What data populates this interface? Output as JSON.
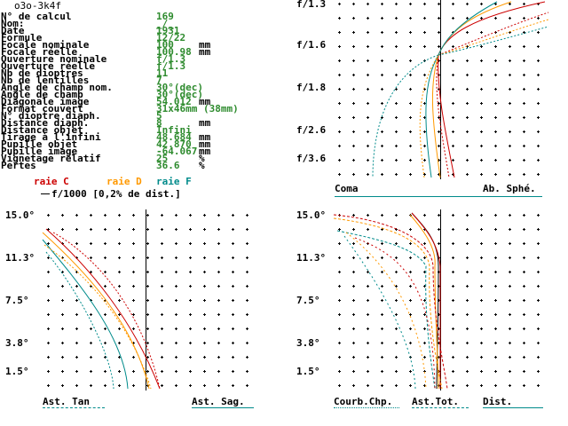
{
  "title": "o3o-3k4f",
  "params": [
    {
      "label": "N° de calcul",
      "value": "169",
      "unit": ""
    },
    {
      "label": "Nom:",
      "value": "_/_",
      "unit": ""
    },
    {
      "label": "Date",
      "value": "1931",
      "unit": ""
    },
    {
      "label": "Formule",
      "value": "12/22",
      "unit": ""
    },
    {
      "label": "Focale nominale",
      "value": "100",
      "unit": "mm"
    },
    {
      "label": "Focale réelle",
      "value": "100.98",
      "unit": "mm"
    },
    {
      "label": "Ouverture nominale",
      "value": "f/1.3",
      "unit": ""
    },
    {
      "label": "Ouverture réelle",
      "value": "f/1.3",
      "unit": ""
    },
    {
      "label": "Nb de dioptres",
      "value": "11",
      "unit": ""
    },
    {
      "label": "Nb de lentilles",
      "value": "7",
      "unit": ""
    },
    {
      "label": "Angle de champ nom.",
      "value": "30°(dec)",
      "unit": ""
    },
    {
      "label": "Angle de champ",
      "value": "30°(dec)",
      "unit": ""
    },
    {
      "label": "Diagonale image",
      "value": "54.012",
      "unit": "mm"
    },
    {
      "label": "Format couvert",
      "value": "31x46mm (38mm)",
      "unit": ""
    },
    {
      "label": "N° dioptre diaph.",
      "value": "5",
      "unit": ""
    },
    {
      "label": "Distance diaph.",
      "value": "8",
      "unit": "mm"
    },
    {
      "label": "Distance objet",
      "value": "Infini",
      "unit": ""
    },
    {
      "label": "Tirage à l'infini",
      "value": "48.684",
      "unit": "mm"
    },
    {
      "label": "Pupille objet",
      "value": "42.870",
      "unit": "mm"
    },
    {
      "label": "Pupille image",
      "value": "-64.067",
      "unit": "mm"
    },
    {
      "label": "Vignetage relatif",
      "value": "25",
      "unit": "%"
    },
    {
      "label": "Pertes",
      "value": "36.6",
      "unit": "%"
    }
  ],
  "legend": {
    "c": "raie C",
    "d": "raie D",
    "f": "raie F",
    "scale": "f/1000 [0,2% de dist.]",
    "colors": {
      "c": "#cc0000",
      "d": "#ff9900",
      "f": "#008b8b"
    }
  },
  "topright": {
    "ticks": [
      "f/1.3",
      "f/1.6",
      "f/1.8",
      "f/2.6",
      "f/3.6"
    ],
    "left_label": "Coma",
    "right_label": "Ab. Sphé."
  },
  "bottomleft": {
    "ticks": [
      "15.0°",
      "11.3°",
      "7.5°",
      "3.8°",
      "1.5°"
    ],
    "left_label": "Ast. Tan",
    "right_label": "Ast. Sag."
  },
  "bottomright": {
    "ticks": [
      "15.0°",
      "11.3°",
      "7.5°",
      "3.8°",
      "1.5°"
    ],
    "label1": "Courb.Chp.",
    "label2": "Ast.Tot.",
    "label3": "Dist."
  }
}
